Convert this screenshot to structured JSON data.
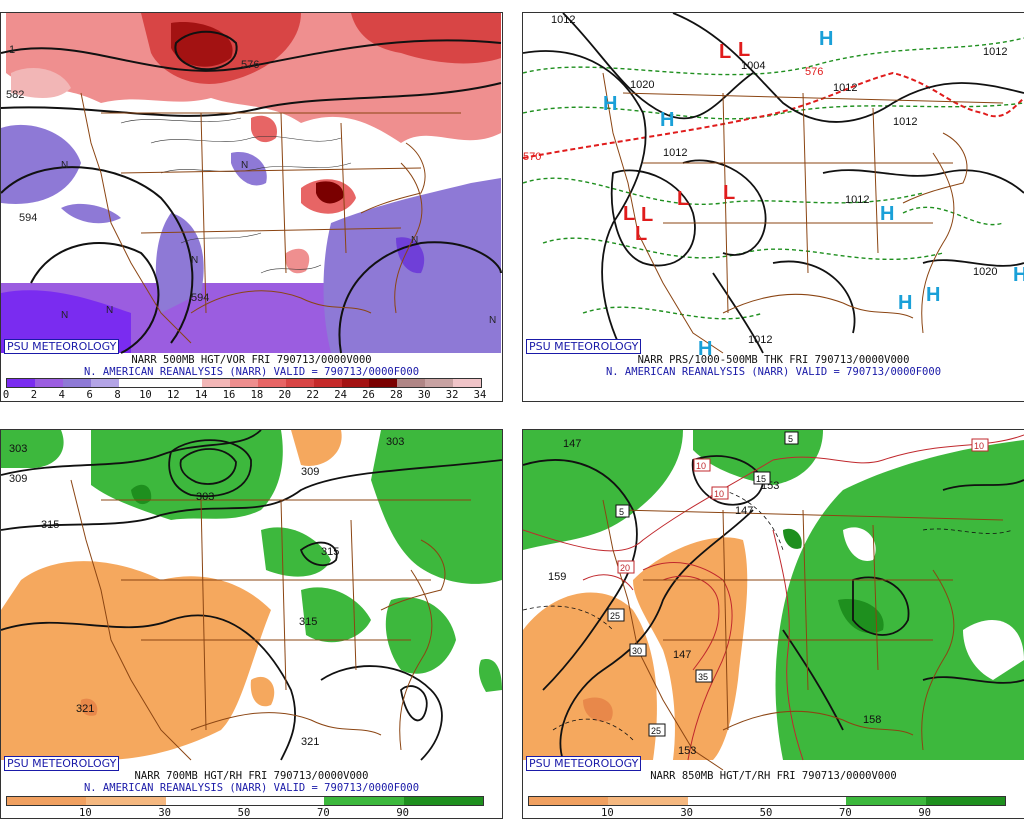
{
  "panels": [
    {
      "badge": "PSU METEOROLOGY",
      "caption1": "NARR 500MB HGT/VOR FRI 790713/0000V000",
      "caption2": "N. AMERICAN REANALYSIS (NARR) VALID = 790713/0000F000",
      "colorbar": [
        "#7a2cf0",
        "#9b5de0",
        "#8e79d6",
        "#b3a4e6",
        "#ffffff",
        "#ffffff",
        "#ffffff",
        "#f2b6b6",
        "#ee8e8e",
        "#e76565",
        "#d84545",
        "#c52a2a",
        "#a31212",
        "#7a0000",
        "#b08585",
        "#c8a2a2",
        "#f0c4c8"
      ],
      "colorbar_labels": [
        "0",
        "2",
        "4",
        "6",
        "8",
        "10",
        "12",
        "14",
        "16",
        "18",
        "20",
        "22",
        "24",
        "26",
        "28",
        "30",
        "32",
        "34"
      ],
      "contour_labels": [
        "582",
        "594",
        "594",
        "576"
      ],
      "highs": [],
      "lows": [
        "N",
        "N",
        "N",
        "N",
        "N",
        "N",
        "N"
      ]
    },
    {
      "badge": "PSU METEOROLOGY",
      "caption1": "NARR PRS/1000-500MB THK FRI 790713/0000V000",
      "caption2": "N. AMERICAN REANALYSIS (NARR) VALID = 790713/0000F000",
      "colorbar": [],
      "colorbar_labels": [],
      "contour_labels": [
        "1012",
        "1020",
        "1012",
        "1004",
        "1012",
        "1012",
        "1012",
        "1012",
        "1020",
        "1012",
        "570",
        "576"
      ],
      "highs": [
        "H",
        "H",
        "H",
        "H",
        "H",
        "H",
        "H",
        "H"
      ],
      "lows": [
        "L",
        "L",
        "L",
        "L",
        "L",
        "L",
        "L"
      ]
    },
    {
      "badge": "PSU METEOROLOGY",
      "caption1": "NARR 700MB HGT/RH FRI 790713/0000V000",
      "caption2": "N. AMERICAN REANALYSIS (NARR) VALID = 790713/0000F000",
      "colorbar": [
        "#f0a060",
        "#f5b880",
        "#ffffff",
        "#ffffff",
        "#3db83d",
        "#1e8f1e"
      ],
      "colorbar_labels": [
        "10",
        "30",
        "50",
        "70",
        "90"
      ],
      "contour_labels": [
        "303",
        "309",
        "303",
        "309",
        "303",
        "315",
        "315",
        "315",
        "321",
        "321"
      ],
      "highs": [],
      "lows": []
    },
    {
      "badge": "PSU METEOROLOGY",
      "caption1": "NARR 850MB HGT/T/RH FRI 790713/0000V000",
      "caption2": "",
      "colorbar": [
        "#f0a060",
        "#f5b880",
        "#ffffff",
        "#ffffff",
        "#3db83d",
        "#1e8f1e"
      ],
      "colorbar_labels": [
        "10",
        "30",
        "50",
        "70",
        "90"
      ],
      "contour_labels": [
        "147",
        "153",
        "159",
        "147",
        "147",
        "153",
        "158",
        "5",
        "5",
        "10",
        "10",
        "10",
        "15",
        "20",
        "25",
        "25",
        "30",
        "35"
      ],
      "highs": [],
      "lows": []
    }
  ]
}
